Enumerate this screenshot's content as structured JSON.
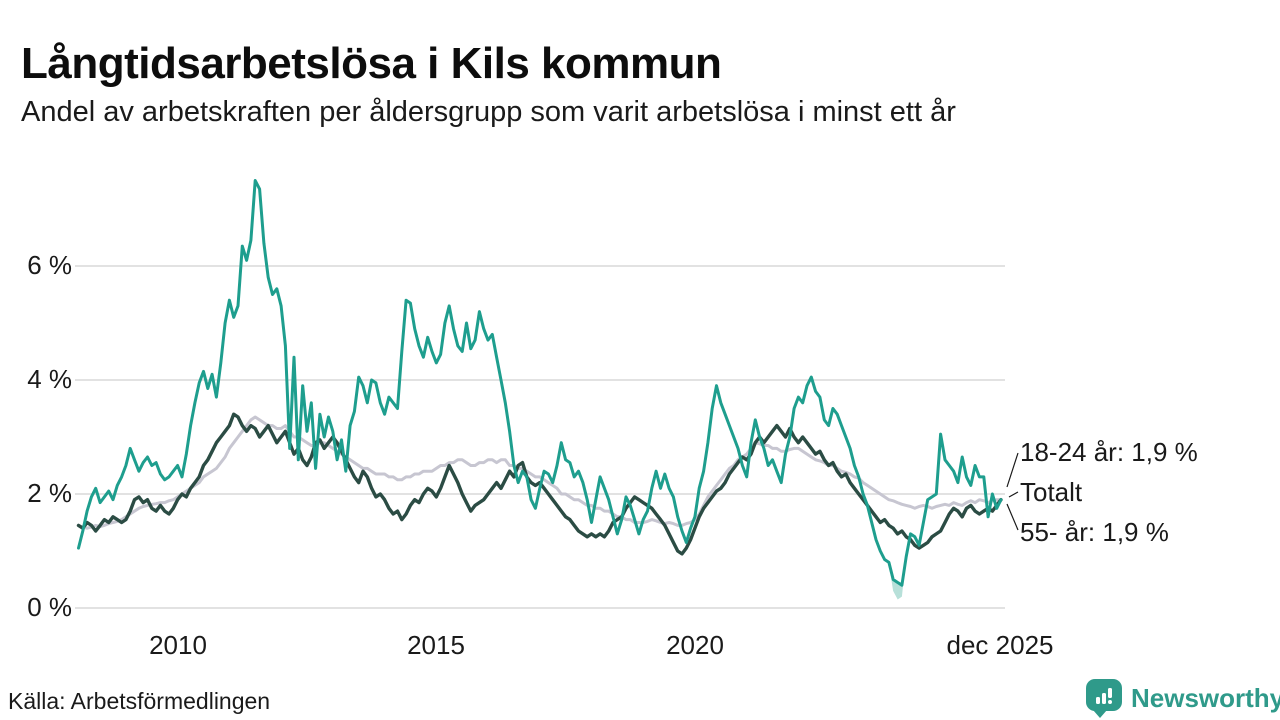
{
  "header": {
    "title": "Långtidsarbetslösa i Kils kommun",
    "subtitle": "Andel av arbetskraften per åldersgrupp som varit arbetslösa i minst ett år"
  },
  "footer": {
    "source": "Källa: Arbetsförmedlingen",
    "brand": "Newsworthy",
    "brand_icon": "bar-chart-map-pin-icon"
  },
  "colors": {
    "teal_line": "#1e9e8e",
    "dark_green_line": "#2b4c44",
    "gray_line": "#c7c6d1",
    "uncertainty_band": "#9fd6cc",
    "gridline": "#e2e2e2",
    "text": "#1a1a1a",
    "brand_teal": "#2f9a8a",
    "connector": "#1a1a1a"
  },
  "chart_data": {
    "type": "line",
    "title": "Långtidsarbetslösa i Kils kommun",
    "subtitle": "Andel av arbetskraften per åldersgrupp som varit arbetslösa i minst ett år",
    "unit": "%",
    "x_start": 2008.0833,
    "x_step": 0.0833333,
    "xlim": [
      2008.0,
      2026.0
    ],
    "ylim": [
      0,
      7.9
    ],
    "grid": "horizontal",
    "legend_position": "end-of-line-labels-right",
    "y_ticks": [
      {
        "value": 0,
        "label": "0 %"
      },
      {
        "value": 2,
        "label": "2 %"
      },
      {
        "value": 4,
        "label": "4 %"
      },
      {
        "value": 6,
        "label": "6 %"
      }
    ],
    "x_ticks": [
      {
        "value": 2010,
        "label": "2010"
      },
      {
        "value": 2015,
        "label": "2015"
      },
      {
        "value": 2020,
        "label": "2020"
      },
      {
        "value": 2025.92,
        "label": "dec 2025"
      }
    ],
    "series": [
      {
        "name": "Totalt",
        "color_key": "gray_line",
        "end_label": "Totalt",
        "stroke_width": 3,
        "values": [
          1.45,
          1.42,
          1.4,
          1.42,
          1.45,
          1.43,
          1.45,
          1.48,
          1.5,
          1.52,
          1.55,
          1.6,
          1.65,
          1.7,
          1.75,
          1.78,
          1.8,
          1.82,
          1.83,
          1.85,
          1.85,
          1.88,
          1.9,
          1.95,
          2.0,
          2.05,
          2.1,
          2.15,
          2.2,
          2.3,
          2.35,
          2.4,
          2.45,
          2.55,
          2.65,
          2.8,
          2.9,
          3.0,
          3.1,
          3.2,
          3.3,
          3.35,
          3.3,
          3.25,
          3.2,
          3.2,
          3.15,
          3.15,
          3.2,
          3.1,
          3.0,
          3.0,
          2.95,
          2.9,
          2.85,
          2.85,
          2.9,
          2.9,
          2.85,
          2.8,
          2.75,
          2.7,
          2.65,
          2.6,
          2.55,
          2.5,
          2.45,
          2.45,
          2.4,
          2.35,
          2.35,
          2.35,
          2.3,
          2.3,
          2.25,
          2.25,
          2.3,
          2.3,
          2.35,
          2.35,
          2.4,
          2.4,
          2.4,
          2.45,
          2.5,
          2.5,
          2.55,
          2.55,
          2.6,
          2.6,
          2.55,
          2.5,
          2.5,
          2.55,
          2.55,
          2.6,
          2.6,
          2.55,
          2.6,
          2.6,
          2.5,
          2.5,
          2.45,
          2.45,
          2.4,
          2.35,
          2.3,
          2.3,
          2.25,
          2.2,
          2.15,
          2.1,
          2.0,
          2.0,
          1.95,
          1.9,
          1.9,
          1.85,
          1.8,
          1.8,
          1.75,
          1.75,
          1.7,
          1.7,
          1.65,
          1.6,
          1.6,
          1.55,
          1.55,
          1.5,
          1.5,
          1.5,
          1.52,
          1.55,
          1.53,
          1.5,
          1.48,
          1.5,
          1.48,
          1.45,
          1.45,
          1.48,
          1.5,
          1.55,
          1.65,
          1.8,
          1.95,
          2.05,
          2.15,
          2.25,
          2.35,
          2.45,
          2.5,
          2.6,
          2.65,
          2.7,
          2.8,
          2.9,
          2.88,
          2.85,
          2.85,
          2.8,
          2.8,
          2.75,
          2.75,
          2.78,
          2.8,
          2.8,
          2.75,
          2.7,
          2.65,
          2.6,
          2.58,
          2.55,
          2.5,
          2.5,
          2.45,
          2.4,
          2.38,
          2.35,
          2.3,
          2.28,
          2.2,
          2.15,
          2.1,
          2.05,
          2.0,
          1.95,
          1.9,
          1.88,
          1.85,
          1.82,
          1.8,
          1.78,
          1.75,
          1.78,
          1.8,
          1.78,
          1.75,
          1.78,
          1.8,
          1.82,
          1.8,
          1.85,
          1.82,
          1.8,
          1.85,
          1.88,
          1.85,
          1.9,
          1.88,
          1.85,
          1.88,
          1.9,
          1.9
        ]
      },
      {
        "name": "55- år",
        "color_key": "dark_green_line",
        "end_label": "55- år: 1,9 %",
        "latest_value": "1,9 %",
        "stroke_width": 3.4,
        "values": [
          1.45,
          1.4,
          1.5,
          1.45,
          1.35,
          1.45,
          1.55,
          1.5,
          1.6,
          1.55,
          1.5,
          1.55,
          1.7,
          1.9,
          1.95,
          1.85,
          1.9,
          1.75,
          1.7,
          1.8,
          1.7,
          1.65,
          1.75,
          1.9,
          2.0,
          1.95,
          2.1,
          2.2,
          2.3,
          2.5,
          2.6,
          2.75,
          2.9,
          3.0,
          3.1,
          3.2,
          3.4,
          3.35,
          3.2,
          3.1,
          3.2,
          3.15,
          3.0,
          3.1,
          3.2,
          3.05,
          2.9,
          3.0,
          3.1,
          2.9,
          2.7,
          2.8,
          2.6,
          2.5,
          2.65,
          2.9,
          2.95,
          2.8,
          2.9,
          3.0,
          2.9,
          2.75,
          2.6,
          2.45,
          2.3,
          2.2,
          2.4,
          2.3,
          2.1,
          1.95,
          2.0,
          1.9,
          1.75,
          1.65,
          1.7,
          1.55,
          1.65,
          1.8,
          1.9,
          1.85,
          2.0,
          2.1,
          2.05,
          1.95,
          2.1,
          2.3,
          2.5,
          2.35,
          2.2,
          2.0,
          1.85,
          1.7,
          1.8,
          1.85,
          1.9,
          2.0,
          2.1,
          2.2,
          2.1,
          2.25,
          2.4,
          2.3,
          2.5,
          2.55,
          2.3,
          2.2,
          2.15,
          2.2,
          2.1,
          2.0,
          1.9,
          1.8,
          1.7,
          1.6,
          1.55,
          1.45,
          1.35,
          1.3,
          1.25,
          1.3,
          1.25,
          1.3,
          1.25,
          1.35,
          1.5,
          1.55,
          1.6,
          1.75,
          1.85,
          1.95,
          1.9,
          1.85,
          1.8,
          1.75,
          1.65,
          1.55,
          1.45,
          1.3,
          1.15,
          1.0,
          0.95,
          1.05,
          1.2,
          1.4,
          1.6,
          1.75,
          1.85,
          1.95,
          2.05,
          2.1,
          2.2,
          2.35,
          2.45,
          2.55,
          2.65,
          2.6,
          2.7,
          2.9,
          3.0,
          2.9,
          3.0,
          3.1,
          3.2,
          3.1,
          3.0,
          3.15,
          3.0,
          2.9,
          3.0,
          2.9,
          2.8,
          2.7,
          2.75,
          2.6,
          2.5,
          2.55,
          2.4,
          2.3,
          2.35,
          2.2,
          2.1,
          2.0,
          1.9,
          1.8,
          1.7,
          1.6,
          1.5,
          1.55,
          1.45,
          1.4,
          1.3,
          1.35,
          1.25,
          1.2,
          1.1,
          1.05,
          1.1,
          1.15,
          1.25,
          1.3,
          1.35,
          1.5,
          1.65,
          1.75,
          1.7,
          1.6,
          1.75,
          1.8,
          1.7,
          1.65,
          1.7,
          1.75,
          1.7,
          1.8,
          1.9
        ]
      },
      {
        "name": "18-24 år",
        "color_key": "teal_line",
        "end_label": "18-24 år: 1,9 %",
        "latest_value": "1,9 %",
        "stroke_width": 3,
        "values": [
          1.05,
          1.35,
          1.7,
          1.95,
          2.1,
          1.85,
          1.95,
          2.05,
          1.9,
          2.15,
          2.3,
          2.5,
          2.8,
          2.6,
          2.4,
          2.55,
          2.65,
          2.5,
          2.55,
          2.35,
          2.25,
          2.3,
          2.4,
          2.5,
          2.3,
          2.7,
          3.2,
          3.6,
          3.95,
          4.15,
          3.85,
          4.1,
          3.7,
          4.3,
          5.0,
          5.4,
          5.1,
          5.3,
          6.35,
          6.1,
          6.45,
          7.5,
          7.35,
          6.4,
          5.8,
          5.5,
          5.6,
          5.3,
          4.6,
          2.8,
          4.4,
          2.6,
          3.9,
          3.1,
          3.6,
          2.45,
          3.4,
          3.0,
          3.35,
          3.1,
          2.6,
          2.95,
          2.4,
          3.2,
          3.45,
          4.05,
          3.9,
          3.6,
          4.0,
          3.95,
          3.6,
          3.4,
          3.7,
          3.6,
          3.5,
          4.5,
          5.4,
          5.35,
          4.9,
          4.6,
          4.4,
          4.75,
          4.5,
          4.3,
          4.45,
          5.0,
          5.3,
          4.9,
          4.6,
          4.5,
          5.0,
          4.55,
          4.7,
          5.2,
          4.9,
          4.7,
          4.8,
          4.4,
          4.0,
          3.6,
          3.1,
          2.5,
          2.2,
          2.4,
          2.3,
          1.9,
          1.75,
          2.1,
          2.4,
          2.35,
          2.2,
          2.5,
          2.9,
          2.6,
          2.55,
          2.3,
          2.4,
          2.2,
          1.9,
          1.5,
          1.9,
          2.3,
          2.1,
          1.9,
          1.6,
          1.3,
          1.55,
          1.95,
          1.8,
          1.55,
          1.3,
          1.55,
          1.7,
          2.1,
          2.4,
          2.1,
          2.35,
          2.1,
          1.95,
          1.6,
          1.35,
          1.15,
          1.4,
          1.6,
          2.1,
          2.4,
          2.9,
          3.5,
          3.9,
          3.6,
          3.4,
          3.2,
          3.0,
          2.8,
          2.5,
          2.3,
          2.9,
          3.3,
          3.0,
          2.8,
          2.5,
          2.6,
          2.4,
          2.2,
          2.7,
          3.0,
          3.5,
          3.7,
          3.6,
          3.9,
          4.05,
          3.8,
          3.7,
          3.3,
          3.2,
          3.5,
          3.4,
          3.2,
          3.0,
          2.8,
          2.5,
          2.3,
          2.0,
          1.8,
          1.5,
          1.2,
          1.0,
          0.85,
          0.8,
          0.5,
          0.45,
          0.4,
          0.9,
          1.3,
          1.25,
          1.1,
          1.5,
          1.9,
          1.95,
          2.0,
          3.05,
          2.6,
          2.5,
          2.4,
          2.2,
          2.65,
          2.3,
          2.15,
          2.5,
          2.3,
          2.3,
          1.6,
          2.0,
          1.75,
          1.9
        ]
      }
    ],
    "uncertainty_band": {
      "series": "18-24 år",
      "x": [
        2023.75,
        2023.83,
        2023.92,
        2024.0,
        2024.08
      ],
      "upper": [
        0.8,
        0.5,
        0.45,
        0.4,
        0.9
      ],
      "lower": [
        0.78,
        0.3,
        0.15,
        0.2,
        0.88
      ]
    },
    "end_labels": [
      "18-24 år: 1,9 %",
      "Totalt",
      "55- år: 1,9 %"
    ]
  }
}
